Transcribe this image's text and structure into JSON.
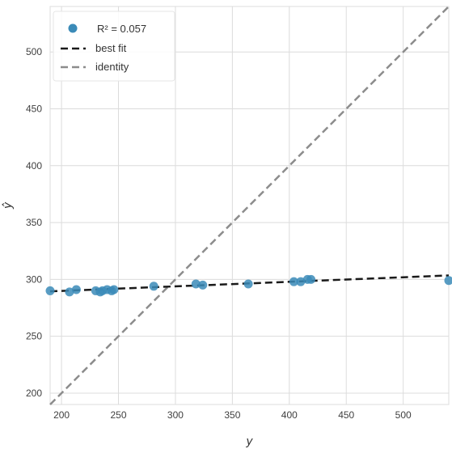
{
  "chart_data": {
    "type": "scatter",
    "xlabel": "y",
    "ylabel": "ŷ",
    "xlim": [
      190,
      540
    ],
    "ylim": [
      190,
      540
    ],
    "x_ticks": [
      200,
      250,
      300,
      350,
      400,
      450,
      500
    ],
    "y_ticks": [
      200,
      250,
      300,
      350,
      400,
      450,
      500
    ],
    "grid": true,
    "legend_position": "top-left",
    "legend": {
      "r2_label": "R² = 0.057",
      "best_fit_label": "best fit",
      "identity_label": "identity"
    },
    "points": [
      {
        "x": 190,
        "y": 290
      },
      {
        "x": 207,
        "y": 289
      },
      {
        "x": 213,
        "y": 291
      },
      {
        "x": 230,
        "y": 290
      },
      {
        "x": 234,
        "y": 289
      },
      {
        "x": 236,
        "y": 290
      },
      {
        "x": 240,
        "y": 291
      },
      {
        "x": 244,
        "y": 290
      },
      {
        "x": 246,
        "y": 291
      },
      {
        "x": 281,
        "y": 294
      },
      {
        "x": 318,
        "y": 296
      },
      {
        "x": 324,
        "y": 295
      },
      {
        "x": 364,
        "y": 296
      },
      {
        "x": 404,
        "y": 298
      },
      {
        "x": 410,
        "y": 298
      },
      {
        "x": 416,
        "y": 300
      },
      {
        "x": 419,
        "y": 300
      },
      {
        "x": 540,
        "y": 299
      }
    ],
    "best_fit": {
      "x": [
        190,
        540
      ],
      "y": [
        289.5,
        303.5
      ]
    },
    "identity": {
      "x": [
        190,
        540
      ],
      "y": [
        190,
        540
      ]
    }
  },
  "colors": {
    "plot_bg": "#ffffff",
    "grid": "#dcdcdc",
    "point": "#3b8bb8",
    "best_fit": "#1a1a1a",
    "identity": "#8c8c8c"
  }
}
